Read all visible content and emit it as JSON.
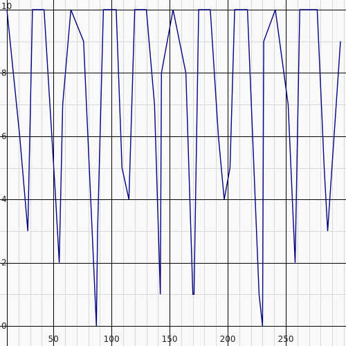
{
  "chart_data": {
    "type": "line",
    "title": "",
    "xlabel": "",
    "ylabel": "",
    "xlim": [
      10,
      300
    ],
    "ylim": [
      0,
      10
    ],
    "x_ticks": [
      50,
      100,
      150,
      200,
      250
    ],
    "x_tick_labels": [
      "50",
      "100",
      "150",
      "200",
      "250"
    ],
    "x_minor_step": 10,
    "y_ticks": [
      0,
      2,
      4,
      6,
      8,
      10
    ],
    "y_tick_labels": [
      "0",
      "2",
      "4",
      "6",
      "8",
      "10"
    ],
    "y_minor_step": 1,
    "grid": true,
    "legend": "none",
    "background_color": "#f9f9f9",
    "line_color": "#000080",
    "series": [
      {
        "x": [
          10,
          21,
          28,
          32,
          42,
          52,
          55,
          58,
          65,
          76,
          87,
          88,
          93,
          104,
          109,
          115,
          120,
          125,
          130,
          137,
          142,
          143,
          153,
          164,
          170,
          171,
          175,
          185,
          192,
          197,
          202,
          206,
          217,
          227,
          230,
          231,
          241,
          252,
          258,
          262,
          267,
          277,
          283,
          286,
          297
        ],
        "values": [
          10,
          6,
          3,
          10,
          10,
          4,
          2,
          7,
          10,
          9,
          0,
          3,
          10,
          10,
          5,
          4,
          10,
          10,
          10,
          7,
          1,
          8,
          10,
          8,
          1,
          1,
          10,
          10,
          6,
          4,
          5,
          10,
          10,
          1,
          0,
          9,
          10,
          7,
          2,
          10,
          10,
          10,
          5,
          3,
          9
        ]
      }
    ]
  }
}
